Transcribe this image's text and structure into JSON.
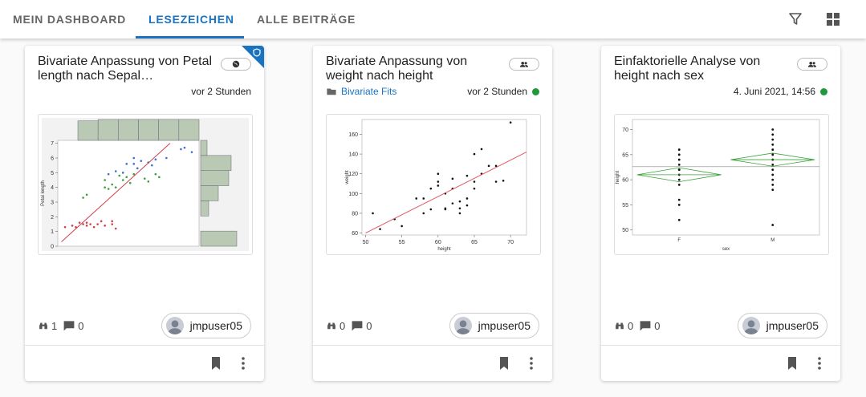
{
  "tabs": [
    "MEIN DASHBOARD",
    "LESEZEICHEN",
    "ALLE BEITRÄGE"
  ],
  "cards": [
    {
      "title": "Bivariate Anpassung von Petal length nach Sepal…",
      "time": "vor 2 Stunden",
      "views": "1",
      "comments": "0",
      "user": "jmpuser05",
      "thumbnail": {
        "type": "scatter",
        "ylabel": "Petal length",
        "xlim": [
          4.2,
          8.1
        ],
        "ylim": [
          0,
          7.2
        ],
        "yticks": [
          0,
          1,
          2,
          3,
          4,
          5,
          6,
          7
        ],
        "series": [
          {
            "color": "#d0404a",
            "x": [
              4.6,
              4.8,
              5.0,
              5.1,
              5.2,
              5.4,
              5.5,
              5.7,
              5.8,
              4.9,
              5.3,
              4.4,
              5.0,
              5.7,
              4.7
            ],
            "y": [
              1.4,
              1.6,
              1.4,
              1.5,
              1.3,
              1.7,
              1.4,
              1.5,
              1.2,
              1.5,
              1.5,
              1.3,
              1.6,
              1.7,
              1.3
            ]
          },
          {
            "color": "#3aa03a",
            "x": [
              4.9,
              5.0,
              5.5,
              5.7,
              5.8,
              6.0,
              6.1,
              6.3,
              6.6,
              6.7,
              6.9,
              7.0,
              5.6,
              6.2,
              5.9,
              5.5
            ],
            "y": [
              3.3,
              3.5,
              4.0,
              4.2,
              4.0,
              4.5,
              4.7,
              4.9,
              4.6,
              4.4,
              4.9,
              4.7,
              3.9,
              4.3,
              4.8,
              4.5
            ]
          },
          {
            "color": "#3b6fd0",
            "x": [
              5.6,
              5.8,
              6.0,
              6.3,
              6.4,
              6.5,
              6.7,
              6.9,
              7.2,
              7.6,
              7.7,
              7.9,
              6.1,
              6.3,
              6.8
            ],
            "y": [
              4.9,
              5.1,
              5.0,
              5.6,
              5.3,
              5.8,
              5.7,
              5.9,
              6.0,
              6.6,
              6.7,
              6.4,
              5.6,
              6.0,
              5.5
            ]
          }
        ],
        "fit": {
          "color": "#d0404a",
          "x": [
            4.3,
            7.3
          ],
          "y": [
            0.3,
            7.0
          ]
        },
        "top_hist": [
          28,
          30,
          30,
          30,
          30,
          30
        ],
        "right_hist": [
          45,
          0,
          10,
          22,
          35,
          38,
          8
        ]
      }
    },
    {
      "title": "Bivariate Anpassung von weight nach height",
      "folder": "Bivariate Fits",
      "time": "vor 2 Stunden",
      "views": "0",
      "comments": "0",
      "user": "jmpuser05",
      "thumbnail": {
        "type": "scatter",
        "ylabel": "weight",
        "xlabel": "height",
        "xlim": [
          49.5,
          72.2
        ],
        "ylim": [
          58,
          175
        ],
        "xticks": [
          50,
          55,
          60,
          65,
          70
        ],
        "yticks": [
          60,
          80,
          100,
          120,
          140,
          160
        ],
        "series": [
          {
            "color": "#111111",
            "x": [
              51,
              52,
              54,
              55,
              57,
              58,
              58,
              59,
              60,
              60,
              60,
              61,
              61,
              62,
              62,
              63,
              63,
              63,
              64,
              64,
              65,
              65,
              65,
              66,
              66,
              67,
              68,
              68,
              69,
              70,
              64,
              62,
              61,
              59
            ],
            "y": [
              80,
              64,
              74,
              67,
              95,
              95,
              80,
              84,
              120,
              112,
              108,
              85,
              100,
              115,
              90,
              92,
              80,
              85,
              95,
              118,
              140,
              112,
              105,
              145,
              120,
              128,
              112,
              128,
              113,
              172,
              88,
              105,
              84,
              105
            ]
          }
        ],
        "fit": {
          "color": "#e05a64",
          "x": [
            50,
            72.2
          ],
          "y": [
            60,
            142
          ]
        }
      }
    },
    {
      "title": "Einfaktorielle Analyse von height nach sex",
      "time": "4. Juni 2021, 14:56",
      "views": "0",
      "comments": "0",
      "user": "jmpuser05",
      "thumbnail": {
        "type": "oneway",
        "ylabel": "height",
        "xlabel": "sex",
        "ylim": [
          49,
          72
        ],
        "yticks": [
          50,
          55,
          60,
          65,
          70
        ],
        "categories": [
          "F",
          "M"
        ],
        "values": [
          [
            66,
            65,
            64,
            63,
            62,
            62,
            61,
            60,
            59,
            56,
            55,
            52
          ],
          [
            70,
            69,
            68,
            67,
            66,
            65,
            64,
            63,
            62,
            61,
            60,
            59,
            58,
            51
          ]
        ],
        "means": [
          61,
          64
        ],
        "ci_low": [
          59.6,
          62.7
        ],
        "ci_high": [
          62.4,
          65.3
        ],
        "grand_mean": 62.6,
        "color": "#3aa03a"
      }
    }
  ]
}
